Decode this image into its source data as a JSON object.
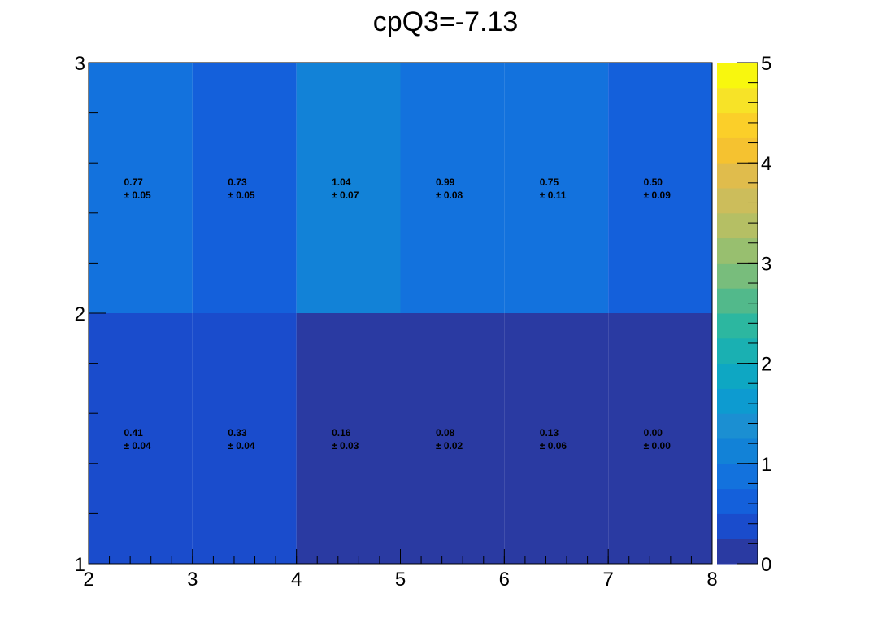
{
  "chart_data": {
    "type": "heatmap",
    "title": "cpQ3=-7.13",
    "x_edges": [
      2,
      3,
      4,
      5,
      6,
      7,
      8
    ],
    "y_edges": [
      1,
      2,
      3
    ],
    "xlim": [
      2,
      8
    ],
    "ylim": [
      1,
      3
    ],
    "x_ticks": [
      "2",
      "3",
      "4",
      "5",
      "6",
      "7",
      "8"
    ],
    "y_ticks": [
      "1",
      "2",
      "3"
    ],
    "z_range": [
      0,
      5
    ],
    "colorbar_ticks": [
      "0",
      "1",
      "2",
      "3",
      "4",
      "5"
    ],
    "colorbar_position": "right",
    "palette": [
      "#2a3aa2",
      "#1a4ccc",
      "#1460db",
      "#1372dd",
      "#1282d7",
      "#1b8fd2",
      "#0d9bd0",
      "#0ea7c3",
      "#1ab0b2",
      "#2cb7a0",
      "#52b98b",
      "#78bd7c",
      "#98bf6f",
      "#b5bf64",
      "#ccbd5b",
      "#e0bc4c",
      "#f5c230",
      "#fbcf29",
      "#f7e327",
      "#f8f70e"
    ],
    "rows": [
      {
        "y": "1-2",
        "cells": [
          {
            "value": 0.41,
            "value_label": "0.41",
            "error_label": "± 0.04"
          },
          {
            "value": 0.33,
            "value_label": "0.33",
            "error_label": "± 0.04"
          },
          {
            "value": 0.16,
            "value_label": "0.16",
            "error_label": "± 0.03"
          },
          {
            "value": 0.08,
            "value_label": "0.08",
            "error_label": "± 0.02"
          },
          {
            "value": 0.13,
            "value_label": "0.13",
            "error_label": "± 0.06"
          },
          {
            "value": 0.0,
            "value_label": "0.00",
            "error_label": "± 0.00"
          }
        ]
      },
      {
        "y": "2-3",
        "cells": [
          {
            "value": 0.77,
            "value_label": "0.77",
            "error_label": "± 0.05"
          },
          {
            "value": 0.73,
            "value_label": "0.73",
            "error_label": "± 0.05"
          },
          {
            "value": 1.04,
            "value_label": "1.04",
            "error_label": "± 0.07"
          },
          {
            "value": 0.99,
            "value_label": "0.99",
            "error_label": "± 0.08"
          },
          {
            "value": 0.75,
            "value_label": "0.75",
            "error_label": "± 0.11"
          },
          {
            "value": 0.5,
            "value_label": "0.50",
            "error_label": "± 0.09"
          }
        ]
      }
    ]
  }
}
